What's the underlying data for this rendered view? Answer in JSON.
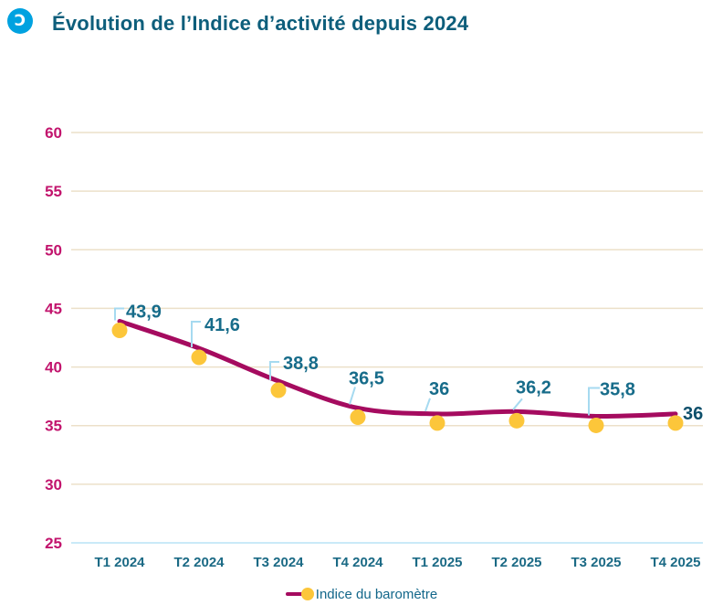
{
  "header": {
    "title": "Évolution de l’Indice d’activité depuis 2024",
    "icon_glyph": "Ɔ"
  },
  "legend": {
    "label": "Indice du baromètre"
  },
  "chart_data": {
    "type": "line",
    "title": "Évolution de l’Indice d’activité depuis 2024",
    "categories": [
      "T1 2024",
      "T2 2024",
      "T3 2024",
      "T4 2024",
      "T1 2025",
      "T2 2025",
      "T3 2025",
      "T4 2025"
    ],
    "series": [
      {
        "name": "Indice du baromètre",
        "values": [
          43.9,
          41.6,
          38.8,
          36.5,
          36,
          36.2,
          35.8,
          36
        ],
        "point_labels": [
          "43,9",
          "41,6",
          "38,8",
          "36,5",
          "36",
          "36,2",
          "35,8",
          "36"
        ]
      }
    ],
    "xlabel": "",
    "ylabel": "",
    "ylim": [
      25,
      60
    ],
    "yticks": [
      25,
      30,
      35,
      40,
      45,
      50,
      55,
      60
    ],
    "grid": "horizontal",
    "legend_position": "bottom",
    "colors": {
      "line": "#a50b5f",
      "marker": "#fcc63a",
      "callout": "#a6daf0",
      "point_label": "#176c8a",
      "last_point_label": "#0d4f6b",
      "ytick": "#c2146d",
      "xtick": "#1b6a85",
      "grid": "#ece0c9",
      "bottom_grid": "#b8e3f5",
      "title": "#0d5e7b",
      "brand": "#00a2e0"
    }
  }
}
